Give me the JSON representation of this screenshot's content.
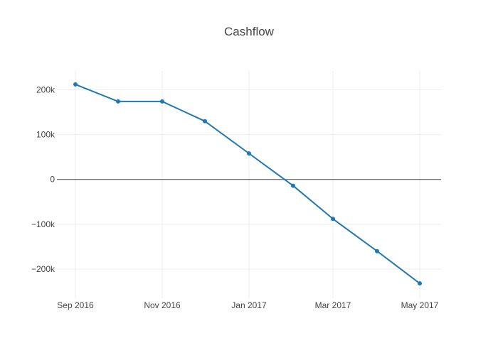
{
  "chart_data": {
    "type": "line",
    "title": "Cashflow",
    "xlabel": "",
    "ylabel": "",
    "x": [
      "2016-09-01",
      "2016-10-01",
      "2016-11-01",
      "2016-12-01",
      "2017-01-01",
      "2017-02-01",
      "2017-03-01",
      "2017-04-01",
      "2017-05-01"
    ],
    "series": [
      {
        "values": [
          212000,
          174000,
          174000,
          130000,
          58000,
          -14000,
          -88000,
          -160000,
          -232000
        ],
        "color": "#1f77b4",
        "mode": "lines+markers"
      }
    ],
    "xlim": [
      "2016-08-19",
      "2017-05-16"
    ],
    "ylim": [
      -265000,
      242000
    ],
    "x_ticks": [
      {
        "date": "2016-09-01",
        "label": "Sep 2016"
      },
      {
        "date": "2016-11-01",
        "label": "Nov 2016"
      },
      {
        "date": "2017-01-01",
        "label": "Jan 2017"
      },
      {
        "date": "2017-03-01",
        "label": "Mar 2017"
      },
      {
        "date": "2017-05-01",
        "label": "May 2017"
      }
    ],
    "y_ticks": [
      {
        "value": 200000,
        "label": "200k"
      },
      {
        "value": 100000,
        "label": "100k"
      },
      {
        "value": 0,
        "label": "0"
      },
      {
        "value": -100000,
        "label": "−100k"
      },
      {
        "value": -200000,
        "label": "−200k"
      }
    ],
    "grid": true,
    "zero_line": true,
    "legend": false
  }
}
